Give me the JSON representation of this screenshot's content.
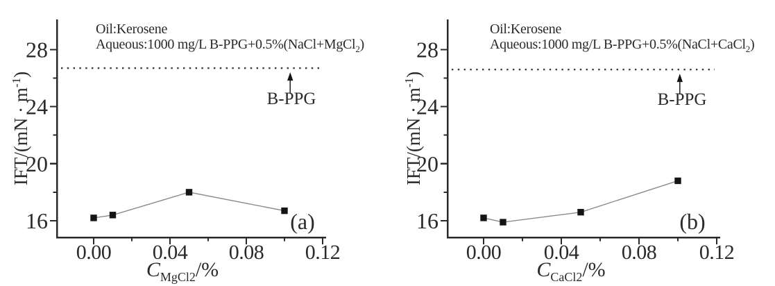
{
  "figure": {
    "background": "#ffffff",
    "text_color": "#2a2a2a"
  },
  "chart_data": [
    {
      "id": "a",
      "type": "line",
      "panel_label": "(a)",
      "annotation": {
        "line1": "Oil:Kerosene",
        "line2_main": "Aqueous:1000 mg/L B-PPG+0.5%(NaCl+MgCl",
        "line2_sub": "2",
        "line2_close": ")"
      },
      "xlabel": {
        "symbol": "C",
        "sub": "MgCl2",
        "unit": "/%"
      },
      "ylabel": {
        "main": "IFT/(mN · m",
        "sup": "-1",
        "close": ")"
      },
      "x": [
        0.0,
        0.01,
        0.05,
        0.1
      ],
      "y": [
        16.2,
        16.4,
        18.0,
        16.7
      ],
      "xlim": [
        -0.019,
        0.122
      ],
      "ylim": [
        14.8,
        30.2
      ],
      "xticks": [
        0.0,
        0.04,
        0.08,
        0.12
      ],
      "xtick_labels": [
        "0.00",
        "0.04",
        "0.08",
        "0.12"
      ],
      "xminor_ticks": [
        0.02,
        0.06,
        0.1
      ],
      "yticks": [
        16,
        20,
        24,
        28
      ],
      "ytick_labels": [
        "16",
        "20",
        "24",
        "28"
      ],
      "yminor_ticks": [
        18,
        22,
        26
      ],
      "refline": {
        "value": 26.7,
        "label": "B-PPG",
        "arrow_x": 0.103
      },
      "grid": false,
      "legend": null,
      "marker": "filled-square",
      "colors": {
        "marker": "#141414",
        "line": "#8a8a8a",
        "refline": "#3d3d3d",
        "axis": "#2a2a2a"
      }
    },
    {
      "id": "b",
      "type": "line",
      "panel_label": "(b)",
      "annotation": {
        "line1": "Oil:Kerosene",
        "line2_main": "Aqueous:1000 mg/L B-PPG+0.5%(NaCl+CaCl",
        "line2_sub": "2",
        "line2_close": ")"
      },
      "xlabel": {
        "symbol": "C",
        "sub": "CaCl2",
        "unit": "/%"
      },
      "ylabel": {
        "main": "IFT/(mN · m",
        "sup": "-1",
        "close": ")"
      },
      "x": [
        0.0,
        0.01,
        0.05,
        0.1
      ],
      "y": [
        16.2,
        15.9,
        16.6,
        18.8
      ],
      "xlim": [
        -0.019,
        0.122
      ],
      "ylim": [
        14.8,
        30.2
      ],
      "xticks": [
        0.0,
        0.04,
        0.08,
        0.12
      ],
      "xtick_labels": [
        "0.00",
        "0.04",
        "0.08",
        "0.12"
      ],
      "xminor_ticks": [
        0.02,
        0.06,
        0.1
      ],
      "yticks": [
        16,
        20,
        24,
        28
      ],
      "ytick_labels": [
        "16",
        "20",
        "24",
        "28"
      ],
      "yminor_ticks": [
        18,
        22,
        26
      ],
      "refline": {
        "value": 26.6,
        "label": "B-PPG",
        "arrow_x": 0.101
      },
      "grid": false,
      "legend": null,
      "marker": "filled-square",
      "colors": {
        "marker": "#141414",
        "line": "#8a8a8a",
        "refline": "#3d3d3d",
        "axis": "#2a2a2a"
      }
    }
  ]
}
